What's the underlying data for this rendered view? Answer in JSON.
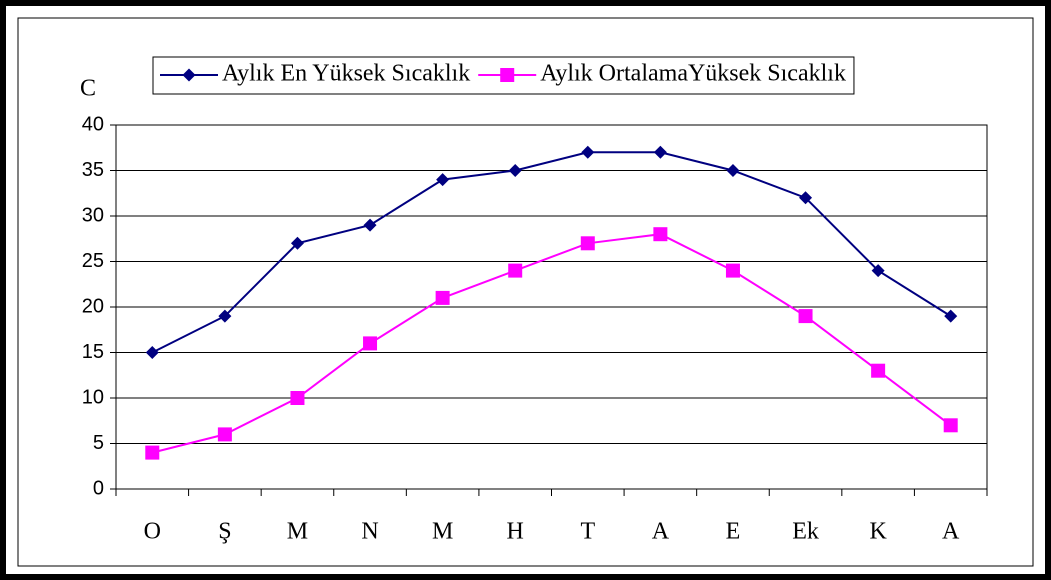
{
  "chart_data": {
    "type": "line",
    "y_label": "C",
    "categories": [
      "O",
      "Ş",
      "M",
      "N",
      "M",
      "H",
      "T",
      "A",
      "E",
      "Ek",
      "K",
      "A"
    ],
    "series": [
      {
        "name": "Aylık En Yüksek Sıcaklık",
        "color": "#000080",
        "marker": "diamond",
        "values": [
          15,
          19,
          27,
          29,
          34,
          35,
          37,
          37,
          35,
          32,
          24,
          19
        ]
      },
      {
        "name": "Aylık OrtalamaYüksek Sıcaklık",
        "color": "#ff00ff",
        "marker": "square",
        "values": [
          4,
          6,
          10,
          16,
          21,
          24,
          27,
          28,
          24,
          19,
          13,
          7
        ]
      }
    ],
    "ylim": [
      0,
      40
    ],
    "yticks": [
      0,
      5,
      10,
      15,
      20,
      25,
      30,
      35,
      40
    ],
    "grid": true,
    "legend": "top"
  }
}
